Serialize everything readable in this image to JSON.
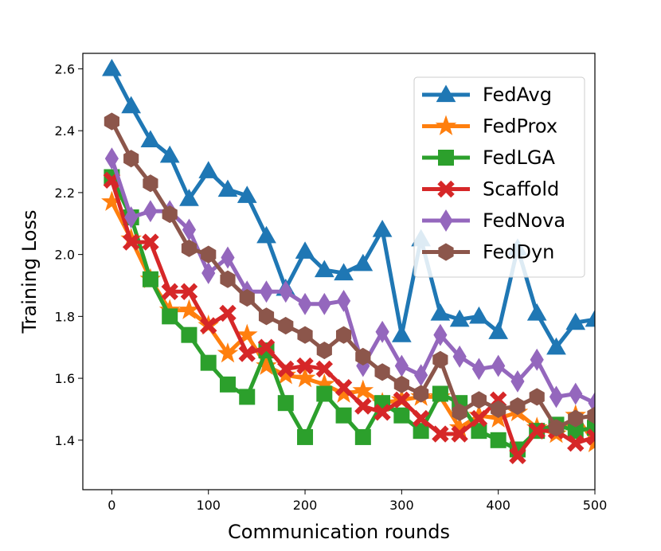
{
  "chart_data": {
    "type": "line",
    "xlabel": "Communication rounds",
    "ylabel": "Training Loss",
    "xlim": [
      -30,
      500
    ],
    "ylim": [
      1.24,
      2.65
    ],
    "xticks": [
      0,
      100,
      200,
      300,
      400,
      500
    ],
    "yticks": [
      1.4,
      1.6,
      1.8,
      2.0,
      2.2,
      2.4,
      2.6
    ],
    "grid": false,
    "legend_position": "top-right",
    "x": [
      0,
      20,
      40,
      60,
      80,
      100,
      120,
      140,
      160,
      180,
      200,
      220,
      240,
      260,
      280,
      300,
      320,
      340,
      360,
      380,
      400,
      420,
      440,
      460,
      480,
      500
    ],
    "series": [
      {
        "name": "FedAvg",
        "color": "#1f77b4",
        "marker": "triangle",
        "values": [
          2.6,
          2.48,
          2.37,
          2.32,
          2.18,
          2.27,
          2.21,
          2.19,
          2.06,
          1.89,
          2.01,
          1.95,
          1.94,
          1.97,
          2.08,
          1.74,
          2.05,
          1.81,
          1.79,
          1.8,
          1.75,
          2.02,
          1.81,
          1.7,
          1.78,
          1.79
        ]
      },
      {
        "name": "FedProx",
        "color": "#ff7f0e",
        "marker": "star",
        "values": [
          2.17,
          2.05,
          1.92,
          1.82,
          1.82,
          1.77,
          1.68,
          1.74,
          1.64,
          1.61,
          1.6,
          1.58,
          1.55,
          1.56,
          1.52,
          1.53,
          1.54,
          1.54,
          1.44,
          1.48,
          1.47,
          1.49,
          1.44,
          1.42,
          1.48,
          1.39
        ]
      },
      {
        "name": "FedLGA",
        "color": "#2ca02c",
        "marker": "square",
        "values": [
          2.25,
          2.12,
          1.92,
          1.8,
          1.74,
          1.65,
          1.58,
          1.54,
          1.69,
          1.52,
          1.41,
          1.55,
          1.48,
          1.41,
          1.52,
          1.48,
          1.43,
          1.55,
          1.52,
          1.43,
          1.4,
          1.37,
          1.43,
          1.45,
          1.43,
          1.44
        ]
      },
      {
        "name": "Scaffold",
        "color": "#d62728",
        "marker": "x",
        "values": [
          2.24,
          2.04,
          2.04,
          1.88,
          1.88,
          1.77,
          1.81,
          1.68,
          1.7,
          1.63,
          1.64,
          1.63,
          1.57,
          1.51,
          1.49,
          1.53,
          1.47,
          1.42,
          1.42,
          1.47,
          1.53,
          1.35,
          1.43,
          1.43,
          1.39,
          1.41
        ]
      },
      {
        "name": "FedNova",
        "color": "#9467bd",
        "marker": "diamond",
        "values": [
          2.31,
          2.12,
          2.14,
          2.14,
          2.08,
          1.94,
          1.99,
          1.88,
          1.88,
          1.88,
          1.84,
          1.84,
          1.85,
          1.64,
          1.75,
          1.64,
          1.61,
          1.74,
          1.67,
          1.63,
          1.64,
          1.59,
          1.66,
          1.54,
          1.55,
          1.52
        ]
      },
      {
        "name": "FedDyn",
        "color": "#8c564b",
        "marker": "pentagon",
        "values": [
          2.43,
          2.31,
          2.23,
          2.13,
          2.02,
          2.0,
          1.92,
          1.86,
          1.8,
          1.77,
          1.74,
          1.69,
          1.74,
          1.67,
          1.62,
          1.58,
          1.55,
          1.66,
          1.49,
          1.53,
          1.5,
          1.51,
          1.54,
          1.44,
          1.47,
          1.48
        ]
      }
    ]
  }
}
